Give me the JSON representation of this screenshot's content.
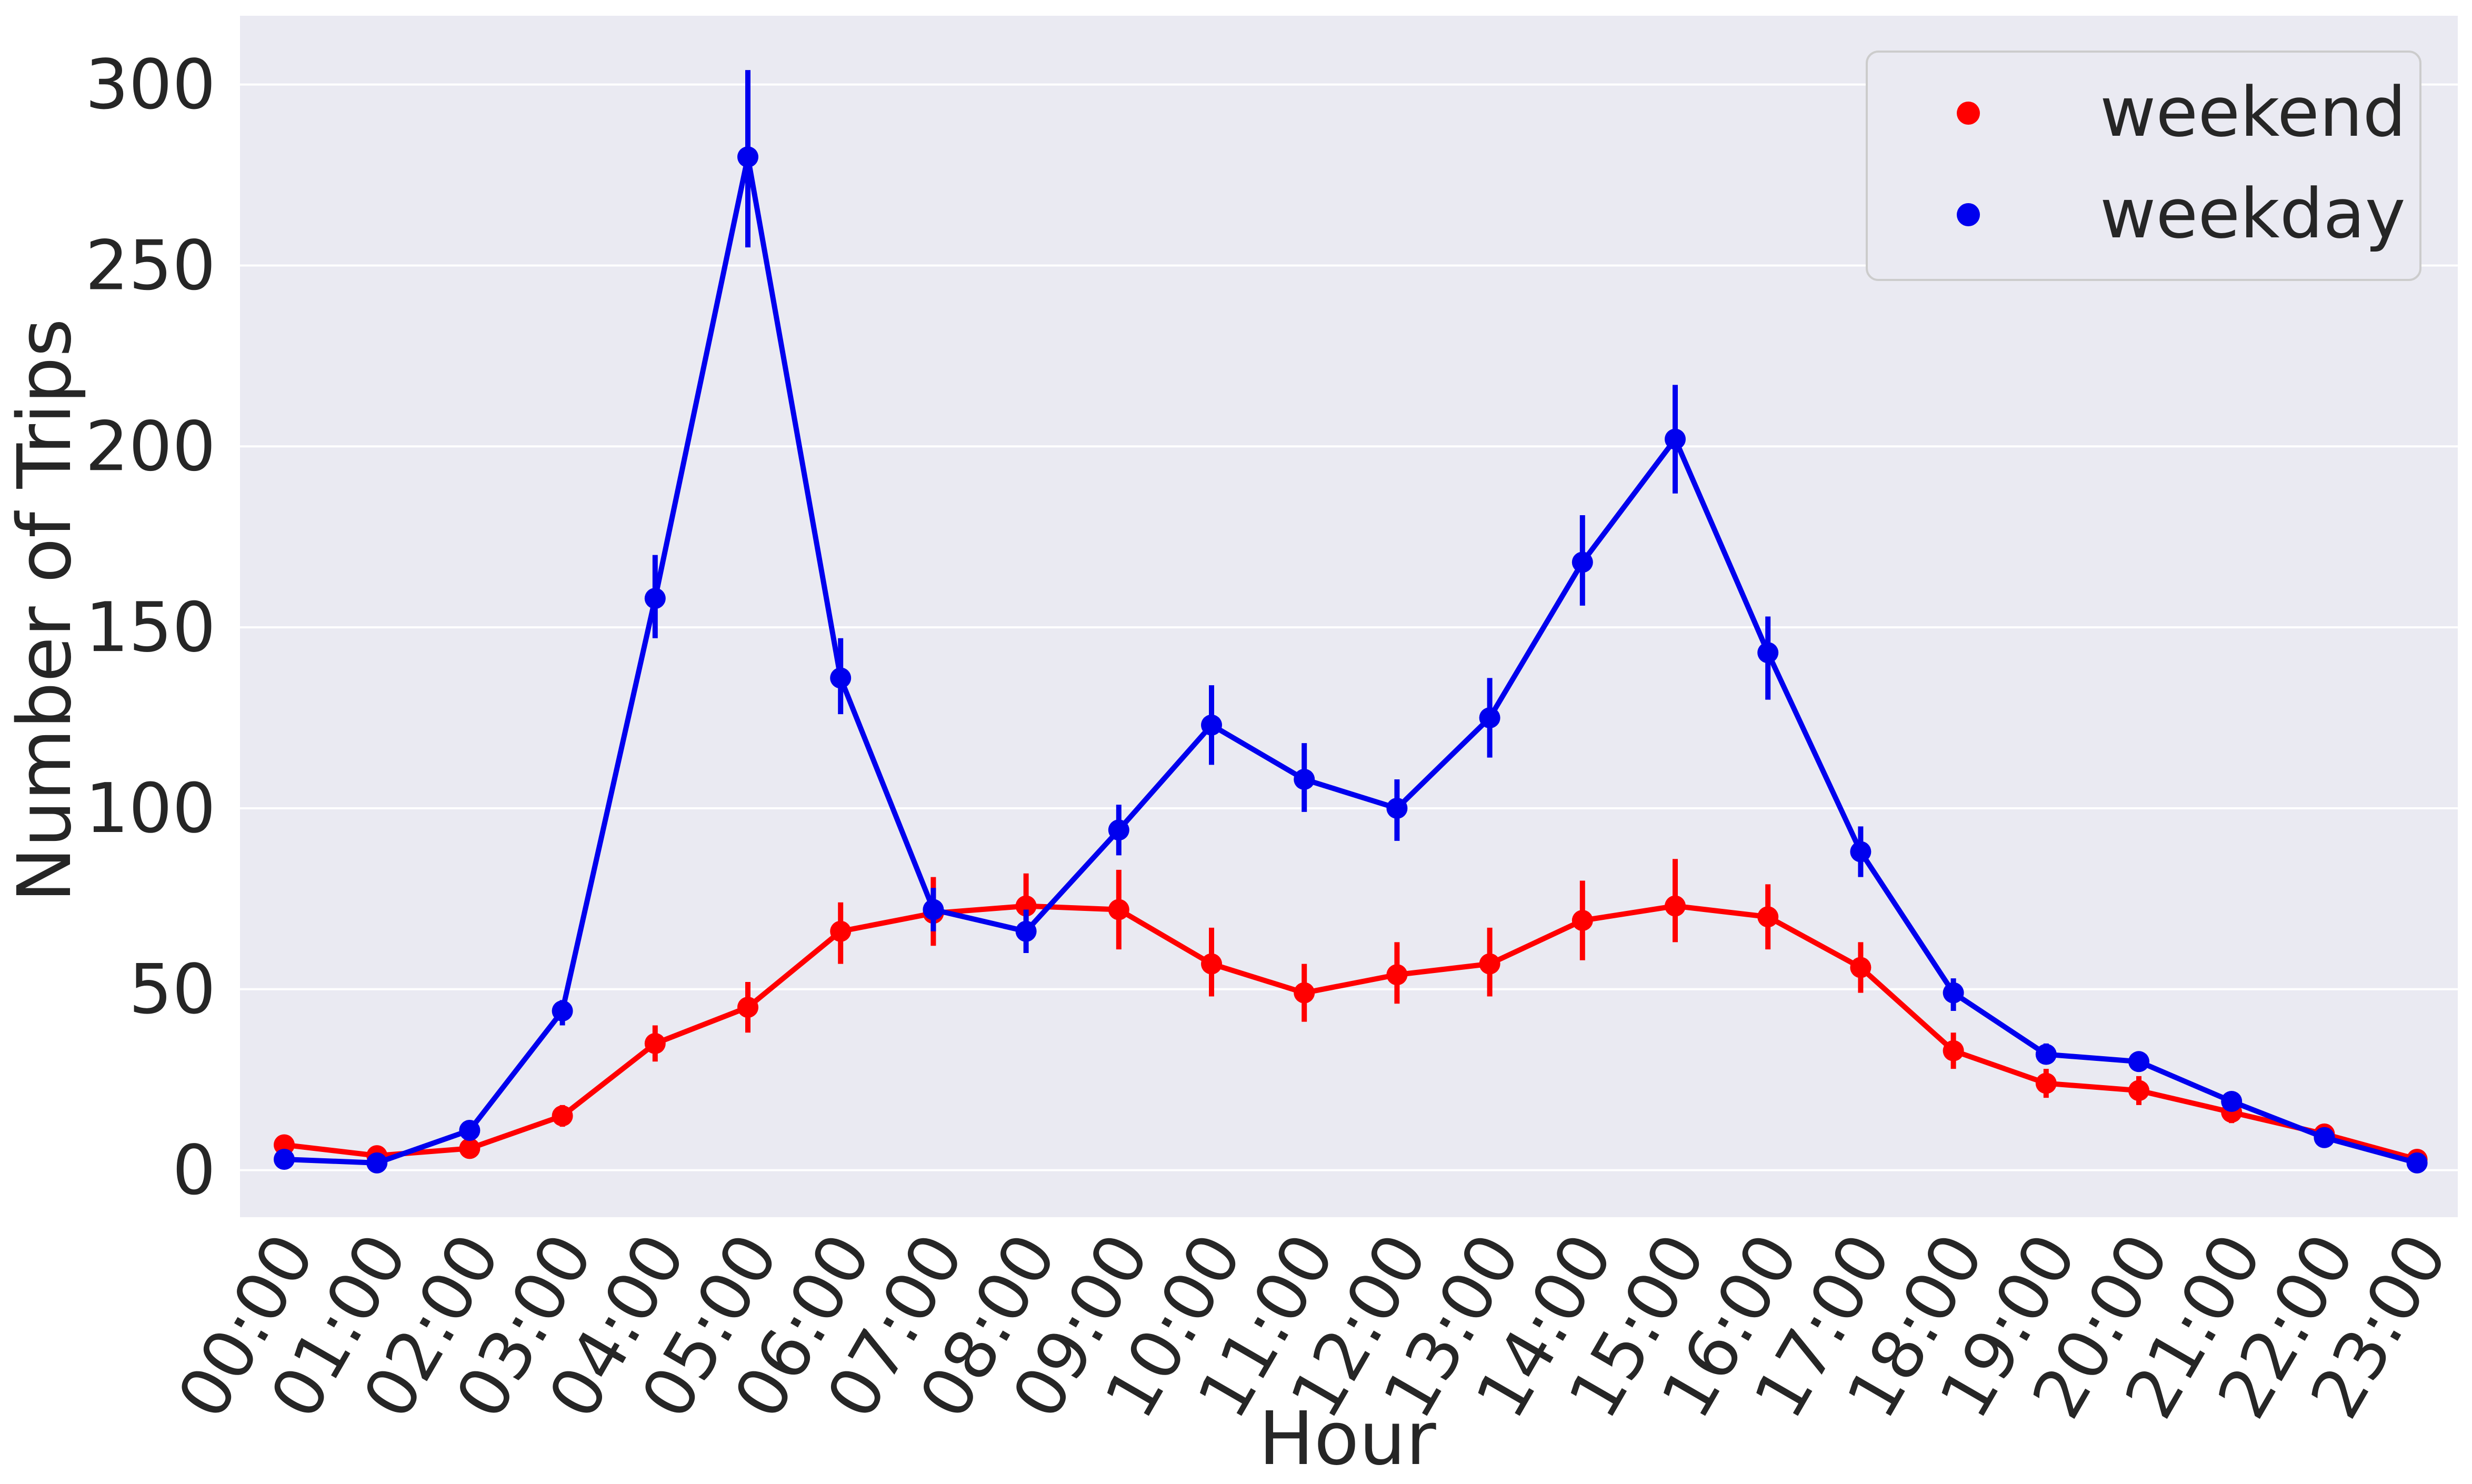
{
  "chart_data": {
    "type": "line",
    "xlabel": "Hour",
    "ylabel": "Number of Trips",
    "categories": [
      "00:00",
      "01:00",
      "02:00",
      "03:00",
      "04:00",
      "05:00",
      "06:00",
      "07:00",
      "08:00",
      "09:00",
      "10:00",
      "11:00",
      "12:00",
      "13:00",
      "14:00",
      "15:00",
      "16:00",
      "17:00",
      "18:00",
      "19:00",
      "20:00",
      "21:00",
      "22:00",
      "23:00"
    ],
    "yticks": [
      0,
      50,
      100,
      150,
      200,
      250,
      300
    ],
    "ylim": [
      -13,
      319
    ],
    "grid": true,
    "legend_position": "top-right",
    "series": [
      {
        "name": "weekend",
        "color": "#ff0000",
        "values": [
          7,
          4,
          6,
          15,
          35,
          45,
          66,
          71,
          73,
          72,
          57,
          49,
          54,
          57,
          69,
          73,
          70,
          56,
          33,
          24,
          22,
          16,
          10,
          3
        ],
        "err_low": [
          5,
          2,
          4,
          12,
          30,
          38,
          57,
          62,
          64,
          61,
          48,
          41,
          46,
          48,
          58,
          63,
          61,
          49,
          28,
          20,
          18,
          13,
          8,
          2
        ],
        "err_high": [
          9,
          6,
          8,
          18,
          40,
          52,
          74,
          81,
          82,
          83,
          67,
          57,
          63,
          67,
          80,
          86,
          79,
          63,
          38,
          28,
          26,
          19,
          12,
          4
        ]
      },
      {
        "name": "weekday",
        "color": "#0000ee",
        "values": [
          3,
          2,
          11,
          44,
          158,
          280,
          136,
          72,
          66,
          94,
          123,
          108,
          100,
          125,
          168,
          202,
          143,
          88,
          49,
          32,
          30,
          19,
          9,
          2
        ],
        "err_low": [
          2,
          1,
          9,
          40,
          147,
          255,
          126,
          66,
          60,
          87,
          112,
          99,
          91,
          114,
          156,
          187,
          130,
          81,
          44,
          30,
          28,
          17,
          7,
          1
        ],
        "err_high": [
          4,
          3,
          13,
          47,
          170,
          304,
          147,
          78,
          72,
          101,
          134,
          118,
          108,
          136,
          181,
          217,
          153,
          95,
          53,
          35,
          32,
          21,
          11,
          3
        ]
      }
    ]
  }
}
